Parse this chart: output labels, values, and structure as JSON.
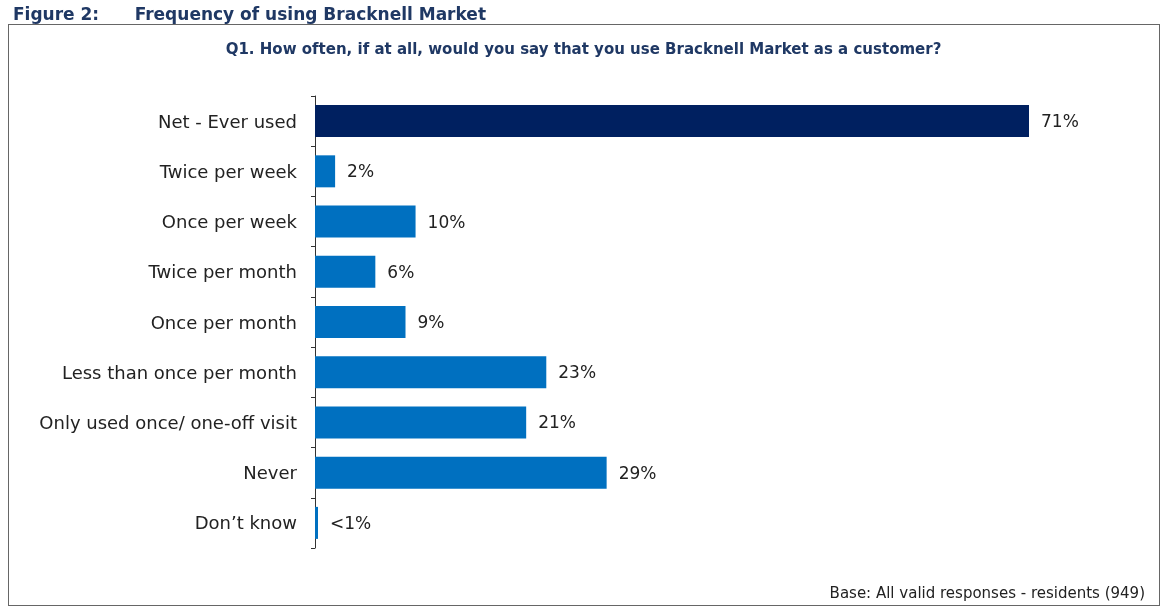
{
  "chart_data": {
    "type": "bar",
    "orientation": "horizontal",
    "title": "Figure 2:      Frequency of using Bracknell Market",
    "subtitle": "Q1. How often, if at all, would you say that you use Bracknell Market as a customer?",
    "categories": [
      "Net - Ever used",
      "Twice per week",
      "Once per week",
      "Twice per month",
      "Once per month",
      "Less than once per month",
      "Only used once/ one-off visit",
      "Never",
      "Don’t know"
    ],
    "values": [
      71,
      2,
      10,
      6,
      9,
      23,
      21,
      29,
      0.3
    ],
    "value_labels": [
      "71%",
      "2%",
      "10%",
      "6%",
      "9%",
      "23%",
      "21%",
      "29%",
      "<1%"
    ],
    "colors": [
      "#002060",
      "#0070c0",
      "#0070c0",
      "#0070c0",
      "#0070c0",
      "#0070c0",
      "#0070c0",
      "#0070c0",
      "#0070c0"
    ],
    "annotations": [
      "Base: All valid responses - residents (949)"
    ]
  }
}
